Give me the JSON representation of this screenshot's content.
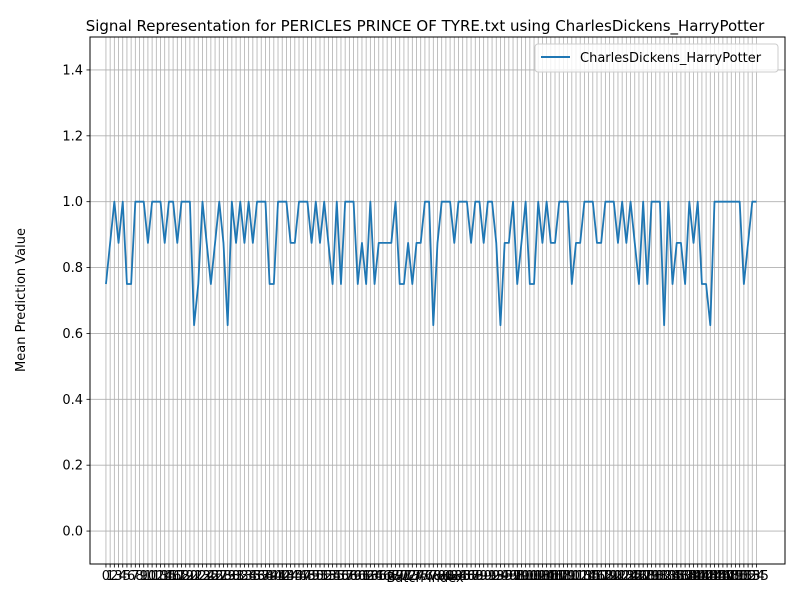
{
  "chart_data": {
    "type": "line",
    "title": "Signal Representation for PERICLES PRINCE OF TYRE.txt using CharlesDickens_HarryPotter",
    "xlabel": "Batch Index",
    "ylabel": "Mean Prediction Value",
    "xlim": [
      -3.8,
      161.8
    ],
    "ylim": [
      -0.1,
      1.5
    ],
    "x_tick_step": 1,
    "y_ticks": [
      0.0,
      0.2,
      0.4,
      0.6,
      0.8,
      1.0,
      1.2,
      1.4
    ],
    "y_tick_labels": [
      "0.0",
      "0.2",
      "0.4",
      "0.6",
      "0.8",
      "1.0",
      "1.2",
      "1.4"
    ],
    "grid": true,
    "legend_position": "top-right",
    "series": [
      {
        "name": "CharlesDickens_HarryPotter",
        "color": "#1f77b4",
        "values": [
          0.75,
          0.875,
          1.0,
          0.875,
          1.0,
          0.75,
          0.75,
          1.0,
          1.0,
          1.0,
          0.875,
          1.0,
          1.0,
          1.0,
          0.875,
          1.0,
          1.0,
          0.875,
          1.0,
          1.0,
          1.0,
          0.625,
          0.75,
          1.0,
          0.875,
          0.75,
          0.875,
          1.0,
          0.875,
          0.625,
          1.0,
          0.875,
          1.0,
          0.875,
          1.0,
          0.875,
          1.0,
          1.0,
          1.0,
          0.75,
          0.75,
          1.0,
          1.0,
          1.0,
          0.875,
          0.875,
          1.0,
          1.0,
          1.0,
          0.875,
          1.0,
          0.875,
          1.0,
          0.875,
          0.75,
          1.0,
          0.75,
          1.0,
          1.0,
          1.0,
          0.75,
          0.875,
          0.75,
          1.0,
          0.75,
          0.875,
          0.875,
          0.875,
          0.875,
          1.0,
          0.75,
          0.75,
          0.875,
          0.75,
          0.875,
          0.875,
          1.0,
          1.0,
          0.625,
          0.875,
          1.0,
          1.0,
          1.0,
          0.875,
          1.0,
          1.0,
          1.0,
          0.875,
          1.0,
          1.0,
          0.875,
          1.0,
          1.0,
          0.875,
          0.625,
          0.875,
          0.875,
          1.0,
          0.75,
          0.875,
          1.0,
          0.75,
          0.75,
          1.0,
          0.875,
          1.0,
          0.875,
          0.875,
          1.0,
          1.0,
          1.0,
          0.75,
          0.875,
          0.875,
          1.0,
          1.0,
          1.0,
          0.875,
          0.875,
          1.0,
          1.0,
          1.0,
          0.875,
          1.0,
          0.875,
          1.0,
          0.875,
          0.75,
          1.0,
          0.75,
          1.0,
          1.0,
          1.0,
          0.625,
          1.0,
          0.75,
          0.875,
          0.875,
          0.75,
          1.0,
          0.875,
          1.0,
          0.75,
          0.75,
          0.625,
          1.0,
          1.0,
          1.0,
          1.0,
          1.0,
          1.0,
          1.0,
          0.75,
          0.875,
          1.0,
          1.0
        ]
      }
    ]
  }
}
